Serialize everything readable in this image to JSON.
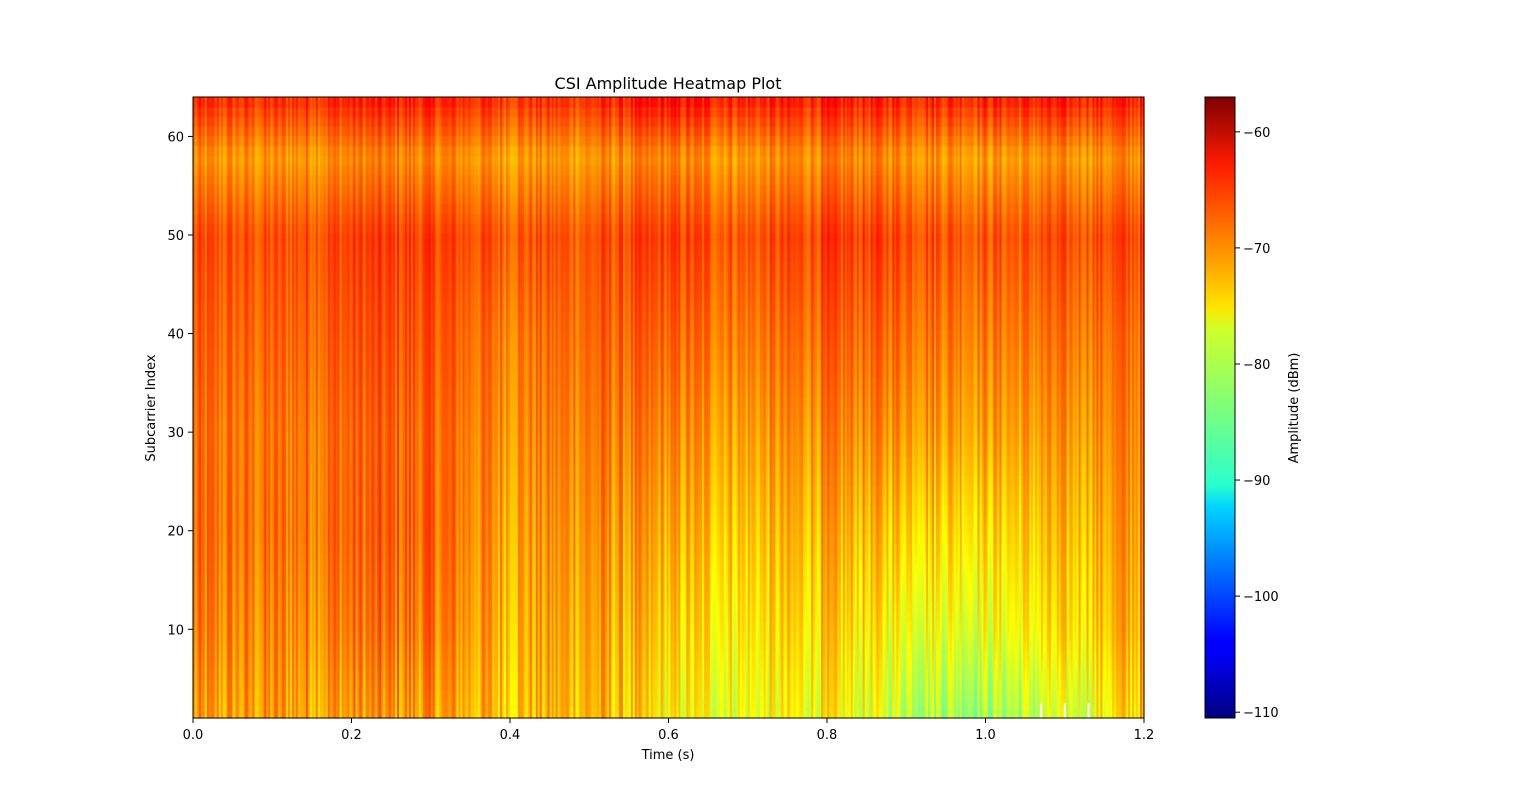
{
  "chart_data": {
    "type": "heatmap",
    "title": "CSI Amplitude Heatmap Plot",
    "xlabel": "Time (s)",
    "ylabel": "Subcarrier Index",
    "xlim": [
      0.0,
      1.2
    ],
    "ylim": [
      1,
      64
    ],
    "x_ticks": [
      0.0,
      0.2,
      0.4,
      0.6,
      0.8,
      1.0,
      1.2
    ],
    "x_tick_labels": [
      "0.0",
      "0.2",
      "0.4",
      "0.6",
      "0.8",
      "1.0",
      "1.2"
    ],
    "y_ticks": [
      10,
      20,
      30,
      40,
      50,
      60
    ],
    "y_tick_labels": [
      "10",
      "20",
      "30",
      "40",
      "50",
      "60"
    ],
    "colormap": "jet",
    "colorbar": {
      "label": "Amplitude (dBm)",
      "vmin": -110.5,
      "vmax": -57,
      "ticks": [
        -60,
        -70,
        -80,
        -90,
        -100,
        -110
      ],
      "tick_labels": [
        "−60",
        "−70",
        "−80",
        "−90",
        "−100",
        "−110"
      ]
    },
    "grid": false,
    "summary_time_bins": [
      0.0,
      0.1,
      0.2,
      0.3,
      0.4,
      0.5,
      0.6,
      0.7,
      0.8,
      0.9,
      1.0,
      1.1,
      1.2
    ],
    "summary_subcarrier_bins": [
      1,
      10,
      20,
      30,
      40,
      50,
      58,
      64
    ],
    "summary_values_dbm": [
      [
        -73,
        -72,
        -72,
        -72,
        -74,
        -73,
        -77,
        -78,
        -77,
        -80,
        -82,
        -80,
        -74
      ],
      [
        -71,
        -71,
        -70,
        -70,
        -73,
        -72,
        -75,
        -76,
        -75,
        -77,
        -78,
        -76,
        -72
      ],
      [
        -70,
        -70,
        -69,
        -69,
        -72,
        -71,
        -73,
        -74,
        -73,
        -74,
        -75,
        -74,
        -71
      ],
      [
        -70,
        -70,
        -69,
        -69,
        -71,
        -70,
        -71,
        -72,
        -71,
        -71,
        -72,
        -72,
        -70
      ],
      [
        -69,
        -69,
        -68,
        -68,
        -70,
        -69,
        -69,
        -70,
        -69,
        -69,
        -70,
        -70,
        -69
      ],
      [
        -68,
        -68,
        -67,
        -67,
        -68,
        -68,
        -67,
        -68,
        -67,
        -67,
        -68,
        -68,
        -67
      ],
      [
        -72,
        -72,
        -71,
        -71,
        -72,
        -72,
        -71,
        -72,
        -71,
        -71,
        -72,
        -72,
        -71
      ],
      [
        -66,
        -66,
        -65,
        -65,
        -66,
        -66,
        -64,
        -65,
        -65,
        -65,
        -65,
        -65,
        -65
      ]
    ],
    "missing_samples_near_time": [
      1.07,
      1.1,
      1.13
    ]
  }
}
